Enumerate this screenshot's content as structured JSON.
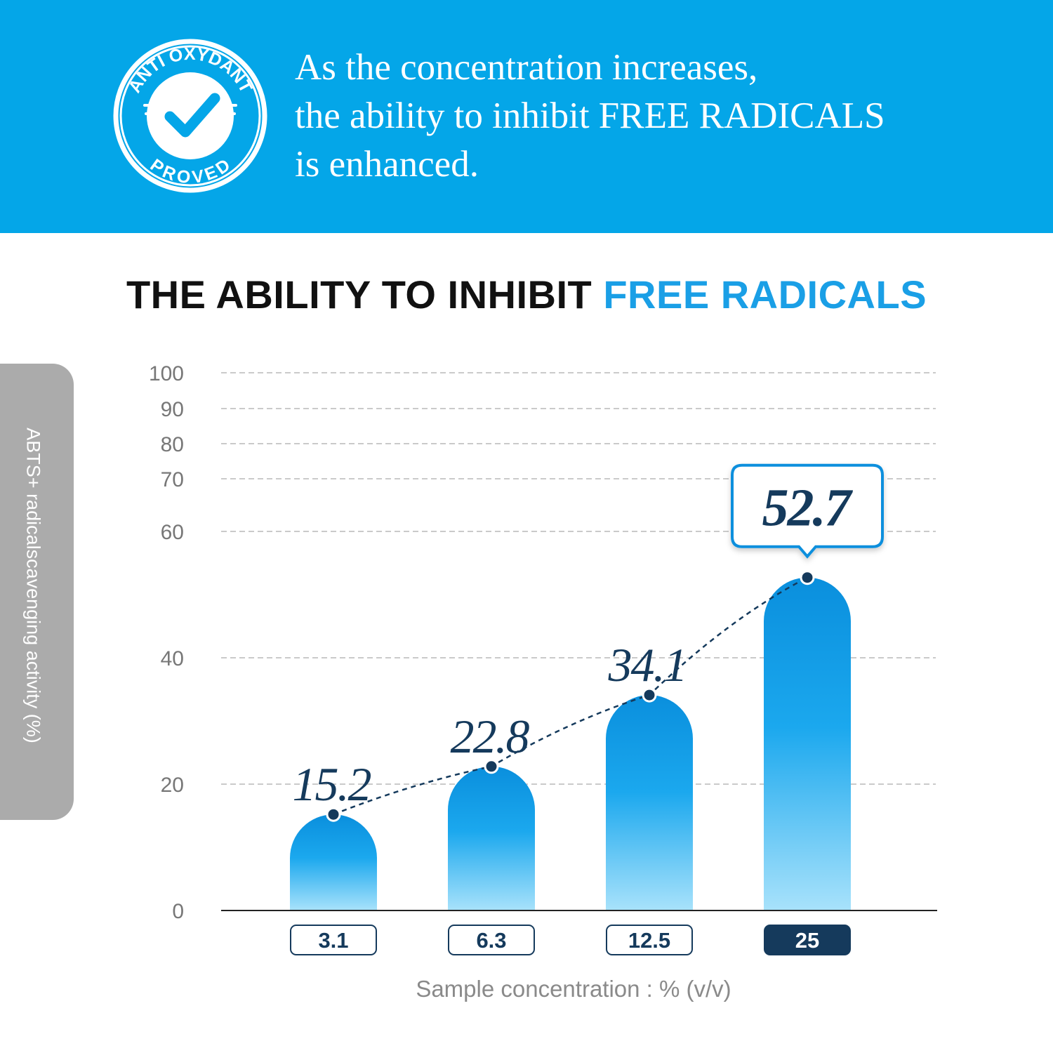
{
  "banner": {
    "headline_lines": [
      "As the concentration increases,",
      "the ability to inhibit FREE RADICALS",
      "is enhanced."
    ],
    "badge": {
      "top_text": "ANTI OXYDANT",
      "bottom_text": "PROVED",
      "icon": "check-icon"
    }
  },
  "colors": {
    "banner": "#04a6e8",
    "accent": "#1a9fe6",
    "bar_top": "#0a8fdd",
    "bar_bottom": "#a8e2fb",
    "navy": "#153a5c"
  },
  "chart_data": {
    "type": "bar",
    "title": "THE ABILITY TO INHIBIT FREE RADICALS",
    "title_parts": {
      "dark": "THE ABILITY TO INHIBIT",
      "highlight": "FREE RADICALS"
    },
    "ylabel": "ABTS+ radicalscavenging activity (%)",
    "xlabel": "Sample concentration : % (v/v)",
    "ylim": [
      0,
      100
    ],
    "y_ticks": [
      0,
      20,
      40,
      60,
      70,
      80,
      90,
      100
    ],
    "grid": true,
    "categories": [
      "3.1",
      "6.3",
      "12.5",
      "25"
    ],
    "highlighted_category": "25",
    "values": [
      15.2,
      22.8,
      34.1,
      52.7
    ],
    "value_labels": [
      "15.2",
      "22.8",
      "34.1",
      "52.7"
    ],
    "trend_line": true
  }
}
